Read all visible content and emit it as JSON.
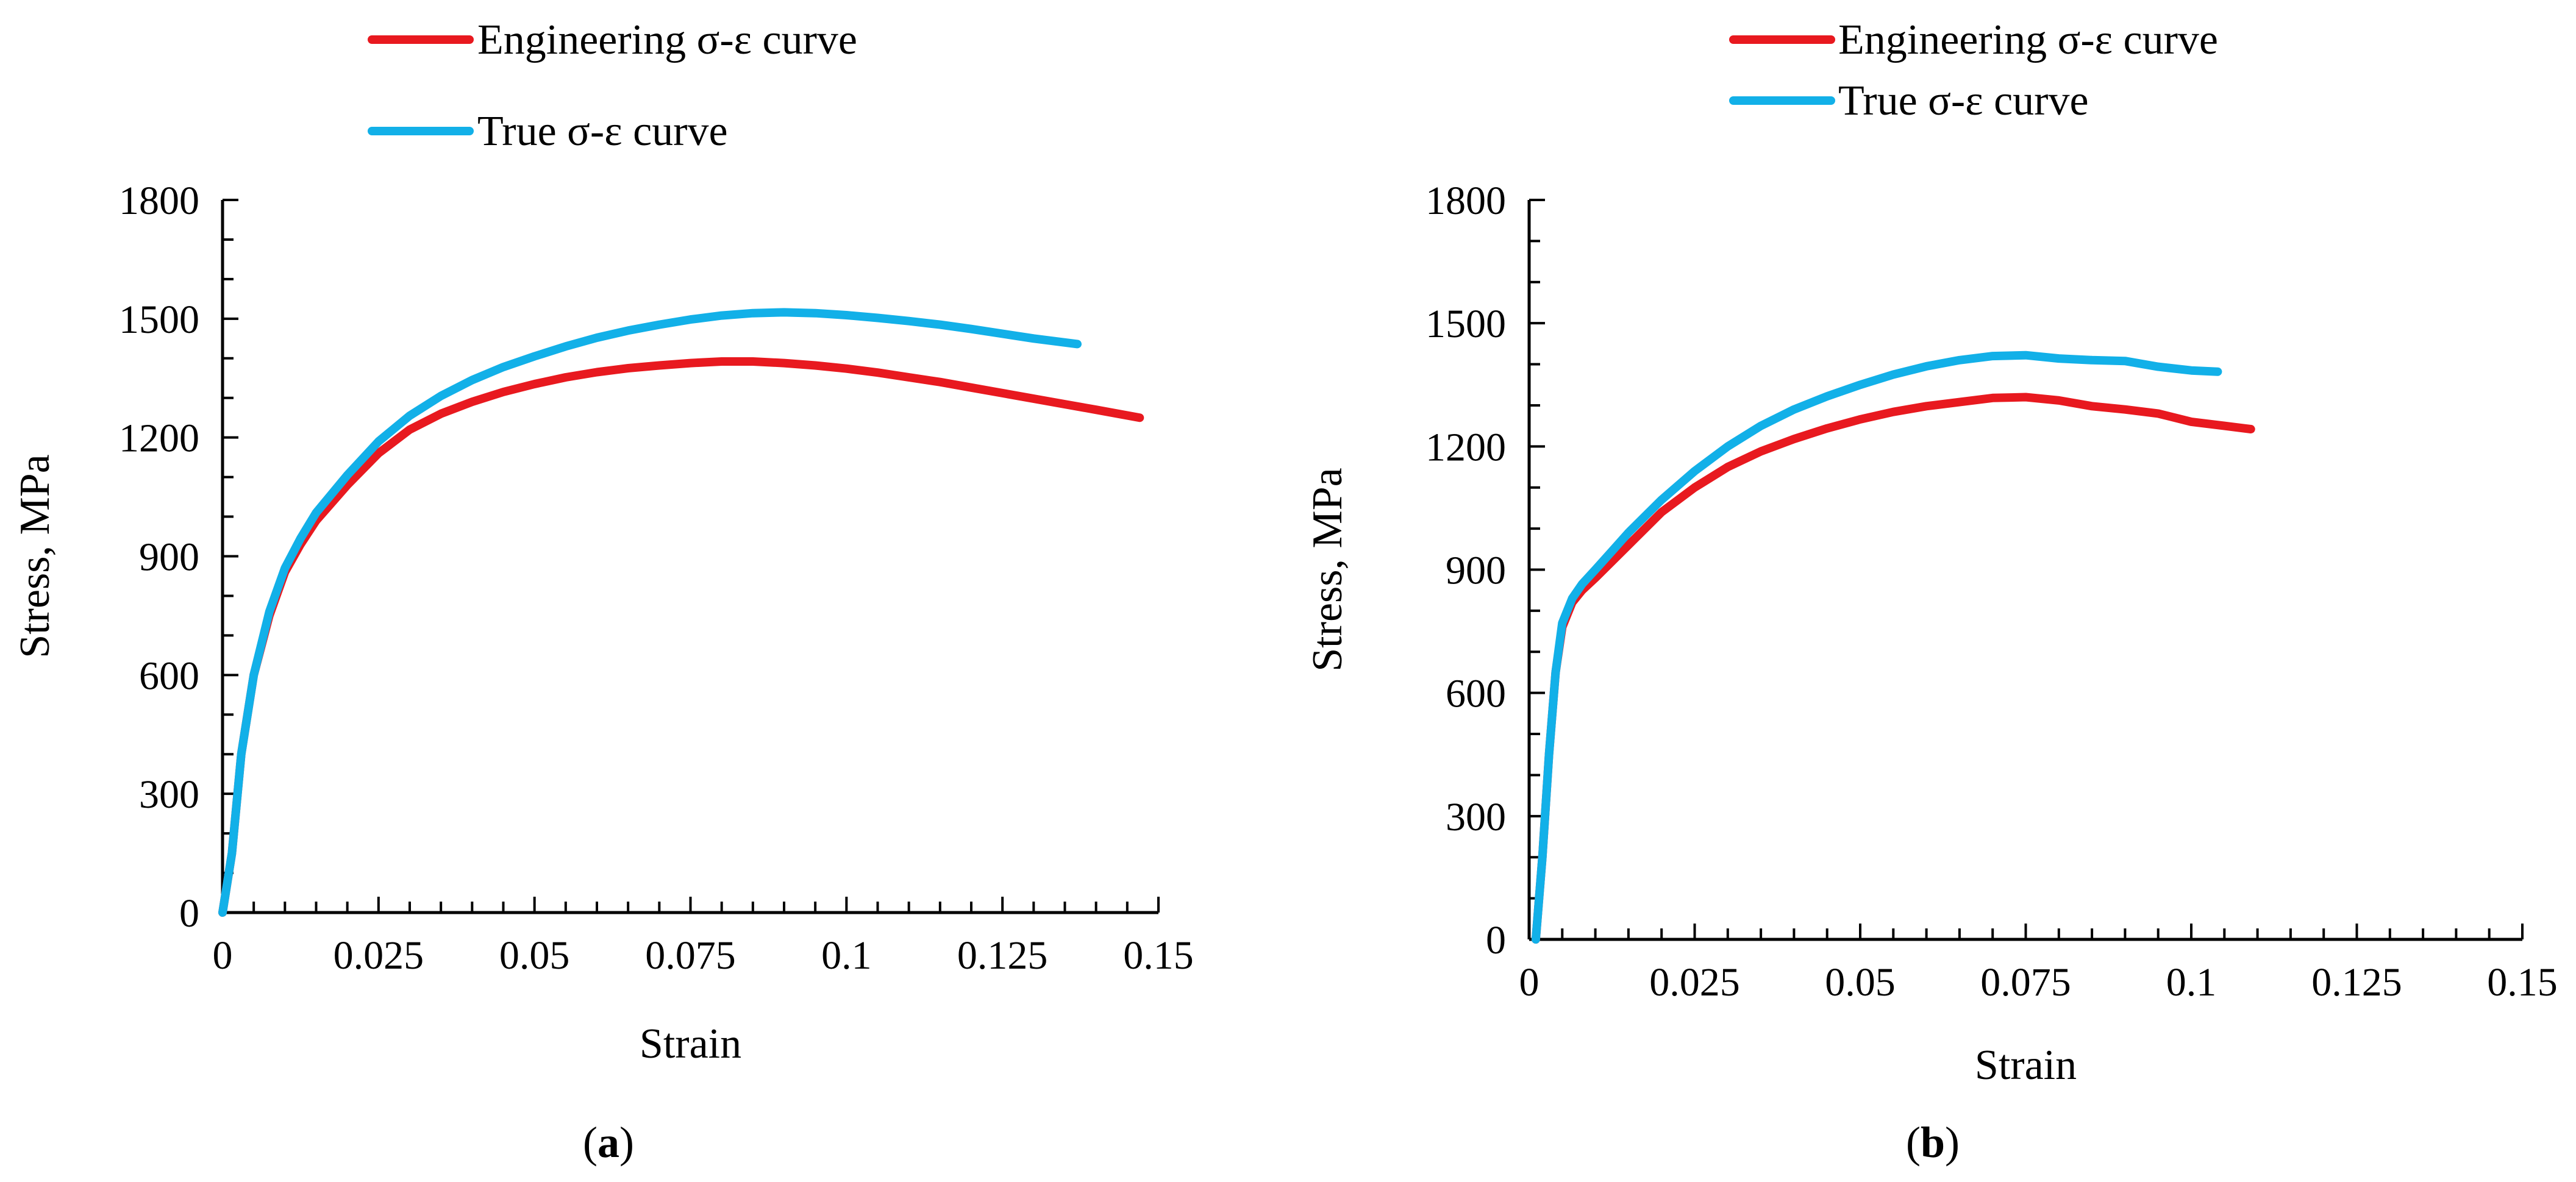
{
  "colors": {
    "engineering": "#e8191f",
    "true": "#12b0e8",
    "axis": "#000000"
  },
  "chart_data": [
    {
      "type": "line",
      "panel_label_parts": [
        "(",
        "a",
        ")"
      ],
      "xlabel": "Strain",
      "ylabel": "Stress, MPa",
      "xlim": [
        0,
        0.15
      ],
      "ylim": [
        0,
        1800
      ],
      "x_ticks": [
        0,
        0.025,
        0.05,
        0.075,
        0.1,
        0.125,
        0.15
      ],
      "x_tick_labels": [
        "0",
        "0.025",
        "0.05",
        "0.075",
        "0.1",
        "0.125",
        "0.15"
      ],
      "x_minor_step": 0.005,
      "y_ticks": [
        0,
        300,
        600,
        900,
        1200,
        1500,
        1800
      ],
      "y_tick_labels": [
        "0",
        "300",
        "600",
        "900",
        "1200",
        "1500",
        "1800"
      ],
      "y_minor_step": 100,
      "legend": [
        "Engineering σ-ε curve",
        "True σ-ε curve"
      ],
      "series": [
        {
          "name": "Engineering σ-ε curve",
          "color_key": "engineering",
          "x": [
            0,
            0.0015,
            0.003,
            0.005,
            0.0075,
            0.01,
            0.0125,
            0.015,
            0.02,
            0.025,
            0.03,
            0.035,
            0.04,
            0.045,
            0.05,
            0.055,
            0.06,
            0.065,
            0.07,
            0.075,
            0.08,
            0.085,
            0.09,
            0.095,
            0.1,
            0.105,
            0.11,
            0.115,
            0.12,
            0.125,
            0.13,
            0.135,
            0.14,
            0.147
          ],
          "y": [
            0,
            150,
            400,
            600,
            750,
            860,
            930,
            990,
            1080,
            1160,
            1220,
            1260,
            1290,
            1315,
            1335,
            1352,
            1365,
            1375,
            1382,
            1388,
            1392,
            1392,
            1388,
            1382,
            1374,
            1364,
            1352,
            1340,
            1326,
            1312,
            1298,
            1284,
            1270,
            1250
          ]
        },
        {
          "name": "True σ-ε curve",
          "color_key": "true",
          "x": [
            0,
            0.0015,
            0.003,
            0.005,
            0.0075,
            0.01,
            0.0125,
            0.015,
            0.02,
            0.025,
            0.03,
            0.035,
            0.04,
            0.045,
            0.05,
            0.055,
            0.06,
            0.065,
            0.07,
            0.075,
            0.08,
            0.085,
            0.09,
            0.095,
            0.1,
            0.105,
            0.11,
            0.115,
            0.12,
            0.125,
            0.13,
            0.137
          ],
          "y": [
            0,
            150,
            400,
            600,
            760,
            870,
            945,
            1010,
            1105,
            1190,
            1255,
            1305,
            1345,
            1378,
            1405,
            1430,
            1452,
            1470,
            1485,
            1498,
            1508,
            1514,
            1516,
            1514,
            1509,
            1502,
            1494,
            1485,
            1474,
            1462,
            1450,
            1436
          ]
        }
      ]
    },
    {
      "type": "line",
      "panel_label_parts": [
        "(",
        "b",
        ")"
      ],
      "xlabel": "Strain",
      "ylabel": "Stress, MPa",
      "xlim": [
        0,
        0.15
      ],
      "ylim": [
        0,
        1800
      ],
      "x_ticks": [
        0,
        0.025,
        0.05,
        0.075,
        0.1,
        0.125,
        0.15
      ],
      "x_tick_labels": [
        "0",
        "0.025",
        "0.05",
        "0.075",
        "0.1",
        "0.125",
        "0.15"
      ],
      "x_minor_step": 0.005,
      "y_ticks": [
        0,
        300,
        600,
        900,
        1200,
        1500,
        1800
      ],
      "y_tick_labels": [
        "0",
        "300",
        "600",
        "900",
        "1200",
        "1500",
        "1800"
      ],
      "y_minor_step": 100,
      "legend": [
        "Engineering σ-ε curve",
        "True σ-ε curve"
      ],
      "series": [
        {
          "name": "Engineering σ-ε curve",
          "color_key": "engineering",
          "x": [
            0.001,
            0.002,
            0.003,
            0.004,
            0.005,
            0.0065,
            0.008,
            0.01,
            0.0125,
            0.015,
            0.02,
            0.025,
            0.03,
            0.035,
            0.04,
            0.045,
            0.05,
            0.055,
            0.06,
            0.065,
            0.07,
            0.075,
            0.08,
            0.085,
            0.09,
            0.095,
            0.1,
            0.105,
            0.109
          ],
          "y": [
            0,
            200,
            450,
            650,
            760,
            820,
            850,
            880,
            920,
            960,
            1040,
            1100,
            1150,
            1188,
            1218,
            1244,
            1266,
            1284,
            1298,
            1308,
            1318,
            1320,
            1312,
            1298,
            1290,
            1280,
            1260,
            1250,
            1242
          ]
        },
        {
          "name": "True σ-ε curve",
          "color_key": "true",
          "x": [
            0.001,
            0.002,
            0.003,
            0.004,
            0.005,
            0.0065,
            0.008,
            0.01,
            0.0125,
            0.015,
            0.02,
            0.025,
            0.03,
            0.035,
            0.04,
            0.045,
            0.05,
            0.055,
            0.06,
            0.065,
            0.07,
            0.075,
            0.08,
            0.085,
            0.09,
            0.095,
            0.1,
            0.104
          ],
          "y": [
            0,
            200,
            450,
            650,
            770,
            830,
            865,
            900,
            945,
            990,
            1070,
            1140,
            1200,
            1250,
            1290,
            1322,
            1350,
            1375,
            1395,
            1410,
            1420,
            1422,
            1414,
            1410,
            1408,
            1394,
            1385,
            1382
          ]
        }
      ]
    }
  ]
}
